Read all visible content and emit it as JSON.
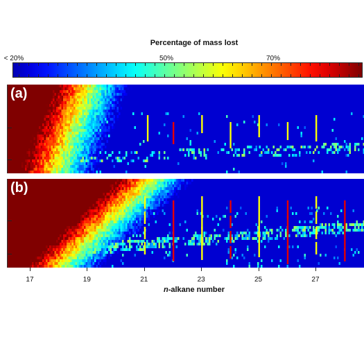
{
  "chart_data": {
    "type": "heatmap",
    "colorbar": {
      "title": "Percentage of mass lost",
      "ticks": [
        {
          "label": "< 20%",
          "value": 20
        },
        {
          "label": "50%",
          "value": 50
        },
        {
          "label": "70%",
          "value": 70
        }
      ],
      "range": [
        20,
        90
      ],
      "colormap": "jet"
    },
    "panels": [
      {
        "label": "(a)",
        "front_start": 17.0,
        "front_slope": 0.12
      },
      {
        "label": "(b)",
        "front_start": 17.2,
        "front_slope": 0.32
      }
    ],
    "x_ticks": [
      17,
      19,
      21,
      23,
      25,
      27
    ],
    "xlim": [
      16.2,
      28.7
    ],
    "xlabel_prefix": "n",
    "xlabel_rest": "-alkane number",
    "peaks_a": [
      21.1,
      22.0,
      23.0,
      24.0,
      25.0,
      26.0,
      27.0
    ],
    "peaks_b": [
      21.0,
      22.0,
      23.0,
      24.0,
      25.0,
      26.0,
      27.0,
      28.0
    ]
  }
}
